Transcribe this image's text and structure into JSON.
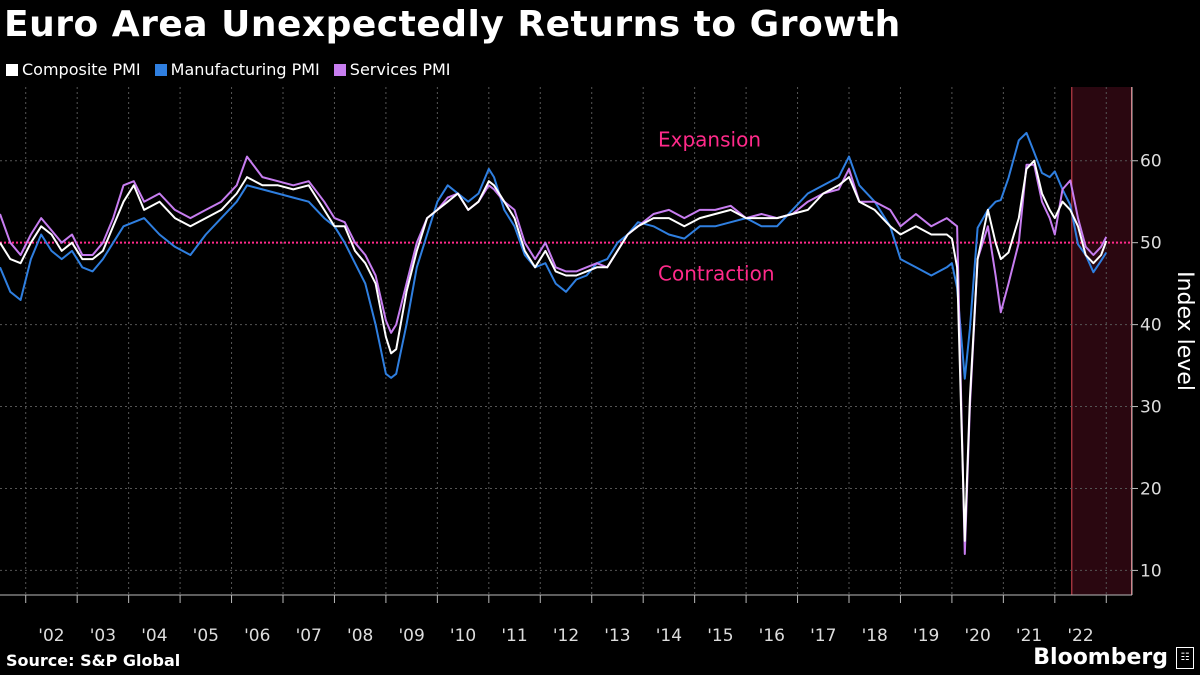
{
  "title": "Euro Area Unexpectedly Returns to Growth",
  "source": "Source: S&P Global",
  "brand": "Bloomberg",
  "brand_icon": "bloomberg-logo-icon",
  "colors": {
    "background": "#000000",
    "composite": "#ffffff",
    "manufacturing": "#2f7fe0",
    "services": "#c77df0",
    "reference_line": "#ff2a8a",
    "highlight_fill": "#2a0710",
    "highlight_border": "#e24a57",
    "grid": "#555555"
  },
  "chart_data": {
    "type": "line",
    "title": "Euro Area Unexpectedly Returns to Growth",
    "ylabel": "Index level",
    "xlabel": "",
    "ylim": [
      7,
      69
    ],
    "xlim": [
      2001.5,
      2023.5
    ],
    "yticks": [
      10,
      20,
      30,
      40,
      50,
      60
    ],
    "x_tick_labels": [
      "'02",
      "'03",
      "'04",
      "'05",
      "'06",
      "'07",
      "'08",
      "'09",
      "'10",
      "'11",
      "'12",
      "'13",
      "'14",
      "'15",
      "'16",
      "'17",
      "'18",
      "'19",
      "'20",
      "'21",
      "'22"
    ],
    "x_tick_years": [
      2002,
      2003,
      2004,
      2005,
      2006,
      2007,
      2008,
      2009,
      2010,
      2011,
      2012,
      2013,
      2014,
      2015,
      2016,
      2017,
      2018,
      2019,
      2020,
      2021,
      2022
    ],
    "grid": true,
    "reference_line": {
      "value": 50,
      "label_above": "Expansion",
      "label_below": "Contraction"
    },
    "highlight_region": {
      "from": 2022.33,
      "to": 2023.5
    },
    "legend_position": "top-left",
    "series": [
      {
        "name": "Composite PMI",
        "color": "#ffffff",
        "x": [
          2001.5,
          2001.7,
          2001.9,
          2002.1,
          2002.3,
          2002.5,
          2002.7,
          2002.9,
          2003.1,
          2003.3,
          2003.5,
          2003.7,
          2003.9,
          2004.1,
          2004.3,
          2004.6,
          2004.9,
          2005.2,
          2005.5,
          2005.8,
          2006.1,
          2006.3,
          2006.6,
          2006.9,
          2007.2,
          2007.5,
          2007.8,
          2008.0,
          2008.2,
          2008.4,
          2008.6,
          2008.8,
          2009.0,
          2009.1,
          2009.2,
          2009.4,
          2009.6,
          2009.8,
          2010.0,
          2010.2,
          2010.4,
          2010.6,
          2010.8,
          2011.0,
          2011.1,
          2011.3,
          2011.5,
          2011.7,
          2011.9,
          2012.1,
          2012.3,
          2012.5,
          2012.7,
          2012.9,
          2013.1,
          2013.3,
          2013.5,
          2013.7,
          2013.9,
          2014.2,
          2014.5,
          2014.8,
          2015.1,
          2015.4,
          2015.7,
          2016.0,
          2016.3,
          2016.6,
          2016.9,
          2017.2,
          2017.5,
          2017.8,
          2018.0,
          2018.2,
          2018.5,
          2018.8,
          2019.0,
          2019.3,
          2019.6,
          2019.9,
          2020.0,
          2020.1,
          2020.25,
          2020.35,
          2020.5,
          2020.7,
          2020.85,
          2020.95,
          2021.1,
          2021.3,
          2021.45,
          2021.6,
          2021.75,
          2021.9,
          2022.0,
          2022.15,
          2022.3,
          2022.45,
          2022.6,
          2022.75,
          2022.9,
          2023.0
        ],
        "values": [
          50,
          48,
          47.5,
          50,
          52,
          51,
          49,
          50,
          48,
          48,
          49,
          52,
          55,
          57,
          54,
          55,
          53,
          52,
          53,
          54,
          56,
          58,
          57,
          57,
          56.5,
          57,
          54,
          52,
          52,
          49,
          47.5,
          45,
          38.5,
          36.5,
          37,
          44,
          49,
          53,
          54,
          55,
          56,
          54,
          55,
          57.5,
          57,
          55,
          53,
          49,
          47,
          49,
          46.5,
          46,
          46,
          46.5,
          47,
          47,
          49,
          51,
          52,
          53,
          53,
          52,
          53,
          53.5,
          54,
          53,
          53,
          53,
          53.5,
          54,
          56,
          57,
          58,
          55,
          54,
          52,
          51,
          52,
          51,
          51,
          50.5,
          47,
          13.6,
          31,
          48,
          54,
          50,
          48,
          48.8,
          53,
          59,
          60,
          56,
          54,
          53,
          55,
          54,
          52,
          48.5,
          47.5,
          48.5,
          50.2
        ]
      },
      {
        "name": "Manufacturing PMI",
        "color": "#2f7fe0",
        "x": [
          2001.5,
          2001.7,
          2001.9,
          2002.1,
          2002.3,
          2002.5,
          2002.7,
          2002.9,
          2003.1,
          2003.3,
          2003.5,
          2003.7,
          2003.9,
          2004.1,
          2004.3,
          2004.6,
          2004.9,
          2005.2,
          2005.5,
          2005.8,
          2006.1,
          2006.3,
          2006.6,
          2006.9,
          2007.2,
          2007.5,
          2007.8,
          2008.0,
          2008.2,
          2008.4,
          2008.6,
          2008.8,
          2009.0,
          2009.1,
          2009.2,
          2009.4,
          2009.6,
          2009.8,
          2010.0,
          2010.2,
          2010.4,
          2010.6,
          2010.8,
          2011.0,
          2011.1,
          2011.3,
          2011.5,
          2011.7,
          2011.9,
          2012.1,
          2012.3,
          2012.5,
          2012.7,
          2012.9,
          2013.1,
          2013.3,
          2013.5,
          2013.7,
          2013.9,
          2014.2,
          2014.5,
          2014.8,
          2015.1,
          2015.4,
          2015.7,
          2016.0,
          2016.3,
          2016.6,
          2016.9,
          2017.2,
          2017.5,
          2017.8,
          2018.0,
          2018.2,
          2018.5,
          2018.8,
          2019.0,
          2019.3,
          2019.6,
          2019.9,
          2020.0,
          2020.1,
          2020.25,
          2020.35,
          2020.5,
          2020.7,
          2020.85,
          2020.95,
          2021.1,
          2021.3,
          2021.45,
          2021.6,
          2021.75,
          2021.9,
          2022.0,
          2022.15,
          2022.3,
          2022.45,
          2022.6,
          2022.75,
          2022.9,
          2023.0
        ],
        "values": [
          47,
          44,
          43,
          48,
          51,
          49,
          48,
          49,
          47,
          46.5,
          48,
          50,
          52,
          52.5,
          53,
          51,
          49.5,
          48.5,
          51,
          53,
          55,
          57,
          56.5,
          56,
          55.5,
          55,
          53,
          52,
          50,
          47.5,
          45,
          40,
          34,
          33.5,
          34,
          40,
          47,
          51,
          55,
          57,
          56,
          55,
          56,
          59,
          58,
          54,
          52,
          48.5,
          47,
          47.5,
          45,
          44,
          45.5,
          46,
          47.5,
          48,
          50,
          51,
          52.5,
          52,
          51,
          50.5,
          52,
          52,
          52.5,
          53,
          52,
          52,
          54,
          56,
          57,
          58,
          60.5,
          57,
          55,
          52,
          48,
          47,
          46,
          47,
          47.5,
          44.5,
          33.4,
          39.5,
          51.8,
          54,
          55,
          55.2,
          57.9,
          62.5,
          63.4,
          61,
          58.5,
          58,
          58.7,
          56.5,
          54.6,
          49.8,
          48.5,
          46.4,
          47.8,
          48.8
        ]
      },
      {
        "name": "Services PMI",
        "color": "#c77df0",
        "x": [
          2001.5,
          2001.7,
          2001.9,
          2002.1,
          2002.3,
          2002.5,
          2002.7,
          2002.9,
          2003.1,
          2003.3,
          2003.5,
          2003.7,
          2003.9,
          2004.1,
          2004.3,
          2004.6,
          2004.9,
          2005.2,
          2005.5,
          2005.8,
          2006.1,
          2006.3,
          2006.6,
          2006.9,
          2007.2,
          2007.5,
          2007.8,
          2008.0,
          2008.2,
          2008.4,
          2008.6,
          2008.8,
          2009.0,
          2009.1,
          2009.2,
          2009.4,
          2009.6,
          2009.8,
          2010.0,
          2010.2,
          2010.4,
          2010.6,
          2010.8,
          2011.0,
          2011.1,
          2011.3,
          2011.5,
          2011.7,
          2011.9,
          2012.1,
          2012.3,
          2012.5,
          2012.7,
          2012.9,
          2013.1,
          2013.3,
          2013.5,
          2013.7,
          2013.9,
          2014.2,
          2014.5,
          2014.8,
          2015.1,
          2015.4,
          2015.7,
          2016.0,
          2016.3,
          2016.6,
          2016.9,
          2017.2,
          2017.5,
          2017.8,
          2018.0,
          2018.2,
          2018.5,
          2018.8,
          2019.0,
          2019.3,
          2019.6,
          2019.9,
          2020.0,
          2020.1,
          2020.25,
          2020.35,
          2020.5,
          2020.7,
          2020.85,
          2020.95,
          2021.1,
          2021.3,
          2021.45,
          2021.6,
          2021.75,
          2021.9,
          2022.0,
          2022.15,
          2022.3,
          2022.45,
          2022.6,
          2022.75,
          2022.9,
          2023.0
        ],
        "values": [
          53.5,
          50,
          48.5,
          51,
          53,
          51.5,
          50,
          51,
          48.5,
          48.5,
          50,
          53,
          57,
          57.5,
          55,
          56,
          54,
          53,
          54,
          55,
          57,
          60.5,
          58,
          57.5,
          57,
          57.5,
          55,
          53,
          52.5,
          50,
          48.5,
          46,
          40.5,
          39,
          40,
          45,
          50,
          53,
          54,
          55.5,
          56,
          54,
          55,
          57,
          56.5,
          55,
          54,
          50,
          48,
          50,
          47,
          46.5,
          46.5,
          47,
          47.5,
          47,
          49,
          51,
          52,
          53.5,
          54,
          53,
          54,
          54,
          54.5,
          53,
          53.5,
          53,
          53.5,
          55,
          56,
          56.5,
          59,
          55,
          55,
          54,
          52,
          53.5,
          52,
          53,
          52.5,
          52,
          12,
          30,
          48,
          52,
          46,
          41.5,
          45,
          50,
          59.5,
          59.5,
          55,
          53,
          51,
          56.5,
          57.6,
          53,
          49.5,
          48.5,
          49.5,
          50.7
        ]
      }
    ]
  }
}
